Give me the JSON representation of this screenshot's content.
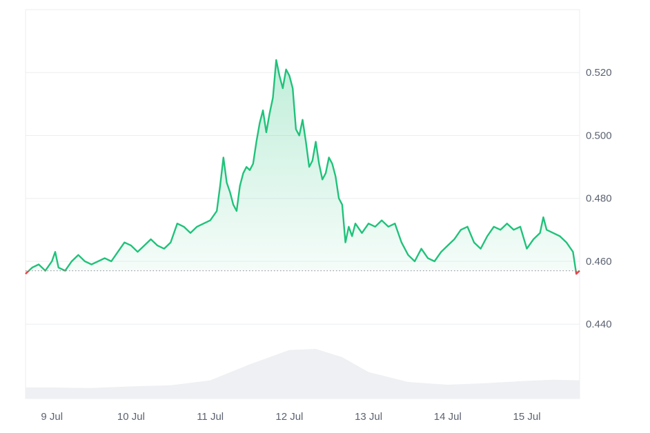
{
  "chart_data": {
    "type": "area",
    "title": "",
    "xlabel": "",
    "ylabel": "",
    "x_ticks": [
      "9 Jul",
      "10 Jul",
      "11 Jul",
      "12 Jul",
      "13 Jul",
      "14 Jul",
      "15 Jul"
    ],
    "y_ticks": [
      "0.440",
      "0.460",
      "0.480",
      "0.500",
      "0.520"
    ],
    "ylim": [
      0.435,
      0.54
    ],
    "xlim": [
      "2024-07-08T16:00",
      "2024-07-15T16:00"
    ],
    "baseline": 0.457,
    "grid": true,
    "y_axis_position": "right",
    "colors": {
      "up_line": "#1fc27a",
      "down_line": "#e8434a",
      "up_fill": "#1fc27a",
      "down_fill": "#f06b70",
      "volume_fill": "#eef0f3",
      "grid": "#eceef1",
      "baseline": "#9aa0a8"
    },
    "series": [
      {
        "values": [
          [
            "2024-07-08T16:00",
            0.456
          ],
          [
            "2024-07-08T18:00",
            0.458
          ],
          [
            "2024-07-08T20:00",
            0.459
          ],
          [
            "2024-07-08T22:00",
            0.457
          ],
          [
            "2024-07-09T00:00",
            0.46
          ],
          [
            "2024-07-09T01:00",
            0.463
          ],
          [
            "2024-07-09T02:00",
            0.458
          ],
          [
            "2024-07-09T04:00",
            0.457
          ],
          [
            "2024-07-09T06:00",
            0.46
          ],
          [
            "2024-07-09T08:00",
            0.462
          ],
          [
            "2024-07-09T10:00",
            0.46
          ],
          [
            "2024-07-09T12:00",
            0.459
          ],
          [
            "2024-07-09T14:00",
            0.46
          ],
          [
            "2024-07-09T16:00",
            0.461
          ],
          [
            "2024-07-09T18:00",
            0.46
          ],
          [
            "2024-07-09T20:00",
            0.463
          ],
          [
            "2024-07-09T22:00",
            0.466
          ],
          [
            "2024-07-10T00:00",
            0.465
          ],
          [
            "2024-07-10T02:00",
            0.463
          ],
          [
            "2024-07-10T04:00",
            0.465
          ],
          [
            "2024-07-10T06:00",
            0.467
          ],
          [
            "2024-07-10T08:00",
            0.465
          ],
          [
            "2024-07-10T10:00",
            0.464
          ],
          [
            "2024-07-10T12:00",
            0.466
          ],
          [
            "2024-07-10T14:00",
            0.472
          ],
          [
            "2024-07-10T16:00",
            0.471
          ],
          [
            "2024-07-10T18:00",
            0.469
          ],
          [
            "2024-07-10T20:00",
            0.471
          ],
          [
            "2024-07-10T22:00",
            0.472
          ],
          [
            "2024-07-11T00:00",
            0.473
          ],
          [
            "2024-07-11T02:00",
            0.476
          ],
          [
            "2024-07-11T03:00",
            0.484
          ],
          [
            "2024-07-11T04:00",
            0.493
          ],
          [
            "2024-07-11T05:00",
            0.485
          ],
          [
            "2024-07-11T06:00",
            0.482
          ],
          [
            "2024-07-11T07:00",
            0.478
          ],
          [
            "2024-07-11T08:00",
            0.476
          ],
          [
            "2024-07-11T09:00",
            0.484
          ],
          [
            "2024-07-11T10:00",
            0.488
          ],
          [
            "2024-07-11T11:00",
            0.49
          ],
          [
            "2024-07-11T12:00",
            0.489
          ],
          [
            "2024-07-11T13:00",
            0.491
          ],
          [
            "2024-07-11T14:00",
            0.498
          ],
          [
            "2024-07-11T15:00",
            0.504
          ],
          [
            "2024-07-11T16:00",
            0.508
          ],
          [
            "2024-07-11T17:00",
            0.501
          ],
          [
            "2024-07-11T18:00",
            0.507
          ],
          [
            "2024-07-11T19:00",
            0.512
          ],
          [
            "2024-07-11T20:00",
            0.524
          ],
          [
            "2024-07-11T21:00",
            0.519
          ],
          [
            "2024-07-11T22:00",
            0.515
          ],
          [
            "2024-07-11T23:00",
            0.521
          ],
          [
            "2024-07-12T00:00",
            0.519
          ],
          [
            "2024-07-12T01:00",
            0.515
          ],
          [
            "2024-07-12T02:00",
            0.502
          ],
          [
            "2024-07-12T03:00",
            0.5
          ],
          [
            "2024-07-12T04:00",
            0.505
          ],
          [
            "2024-07-12T05:00",
            0.498
          ],
          [
            "2024-07-12T06:00",
            0.49
          ],
          [
            "2024-07-12T07:00",
            0.492
          ],
          [
            "2024-07-12T08:00",
            0.498
          ],
          [
            "2024-07-12T09:00",
            0.491
          ],
          [
            "2024-07-12T10:00",
            0.486
          ],
          [
            "2024-07-12T11:00",
            0.488
          ],
          [
            "2024-07-12T12:00",
            0.493
          ],
          [
            "2024-07-12T13:00",
            0.491
          ],
          [
            "2024-07-12T14:00",
            0.487
          ],
          [
            "2024-07-12T15:00",
            0.48
          ],
          [
            "2024-07-12T16:00",
            0.478
          ],
          [
            "2024-07-12T17:00",
            0.466
          ],
          [
            "2024-07-12T18:00",
            0.471
          ],
          [
            "2024-07-12T19:00",
            0.468
          ],
          [
            "2024-07-12T20:00",
            0.472
          ],
          [
            "2024-07-12T22:00",
            0.469
          ],
          [
            "2024-07-13T00:00",
            0.472
          ],
          [
            "2024-07-13T02:00",
            0.471
          ],
          [
            "2024-07-13T04:00",
            0.473
          ],
          [
            "2024-07-13T06:00",
            0.471
          ],
          [
            "2024-07-13T08:00",
            0.472
          ],
          [
            "2024-07-13T10:00",
            0.466
          ],
          [
            "2024-07-13T12:00",
            0.462
          ],
          [
            "2024-07-13T14:00",
            0.46
          ],
          [
            "2024-07-13T16:00",
            0.464
          ],
          [
            "2024-07-13T18:00",
            0.461
          ],
          [
            "2024-07-13T20:00",
            0.46
          ],
          [
            "2024-07-13T22:00",
            0.463
          ],
          [
            "2024-07-14T00:00",
            0.465
          ],
          [
            "2024-07-14T02:00",
            0.467
          ],
          [
            "2024-07-14T04:00",
            0.47
          ],
          [
            "2024-07-14T06:00",
            0.471
          ],
          [
            "2024-07-14T08:00",
            0.466
          ],
          [
            "2024-07-14T10:00",
            0.464
          ],
          [
            "2024-07-14T12:00",
            0.468
          ],
          [
            "2024-07-14T14:00",
            0.471
          ],
          [
            "2024-07-14T16:00",
            0.47
          ],
          [
            "2024-07-14T18:00",
            0.472
          ],
          [
            "2024-07-14T20:00",
            0.47
          ],
          [
            "2024-07-14T22:00",
            0.471
          ],
          [
            "2024-07-15T00:00",
            0.464
          ],
          [
            "2024-07-15T02:00",
            0.467
          ],
          [
            "2024-07-15T04:00",
            0.469
          ],
          [
            "2024-07-15T05:00",
            0.474
          ],
          [
            "2024-07-15T06:00",
            0.47
          ],
          [
            "2024-07-15T08:00",
            0.469
          ],
          [
            "2024-07-15T10:00",
            0.468
          ],
          [
            "2024-07-15T12:00",
            0.466
          ],
          [
            "2024-07-15T14:00",
            0.463
          ],
          [
            "2024-07-15T15:00",
            0.456
          ],
          [
            "2024-07-15T16:00",
            0.457
          ]
        ]
      }
    ],
    "volume": [
      [
        "2024-07-08T16:00",
        0.2
      ],
      [
        "2024-07-09T00:00",
        0.2
      ],
      [
        "2024-07-09T12:00",
        0.19
      ],
      [
        "2024-07-10T00:00",
        0.22
      ],
      [
        "2024-07-10T12:00",
        0.24
      ],
      [
        "2024-07-11T00:00",
        0.33
      ],
      [
        "2024-07-11T12:00",
        0.62
      ],
      [
        "2024-07-12T00:00",
        0.88
      ],
      [
        "2024-07-12T08:00",
        0.9
      ],
      [
        "2024-07-12T16:00",
        0.75
      ],
      [
        "2024-07-13T00:00",
        0.48
      ],
      [
        "2024-07-13T12:00",
        0.3
      ],
      [
        "2024-07-14T00:00",
        0.25
      ],
      [
        "2024-07-14T12:00",
        0.28
      ],
      [
        "2024-07-15T00:00",
        0.32
      ],
      [
        "2024-07-15T08:00",
        0.34
      ],
      [
        "2024-07-15T16:00",
        0.33
      ]
    ]
  }
}
